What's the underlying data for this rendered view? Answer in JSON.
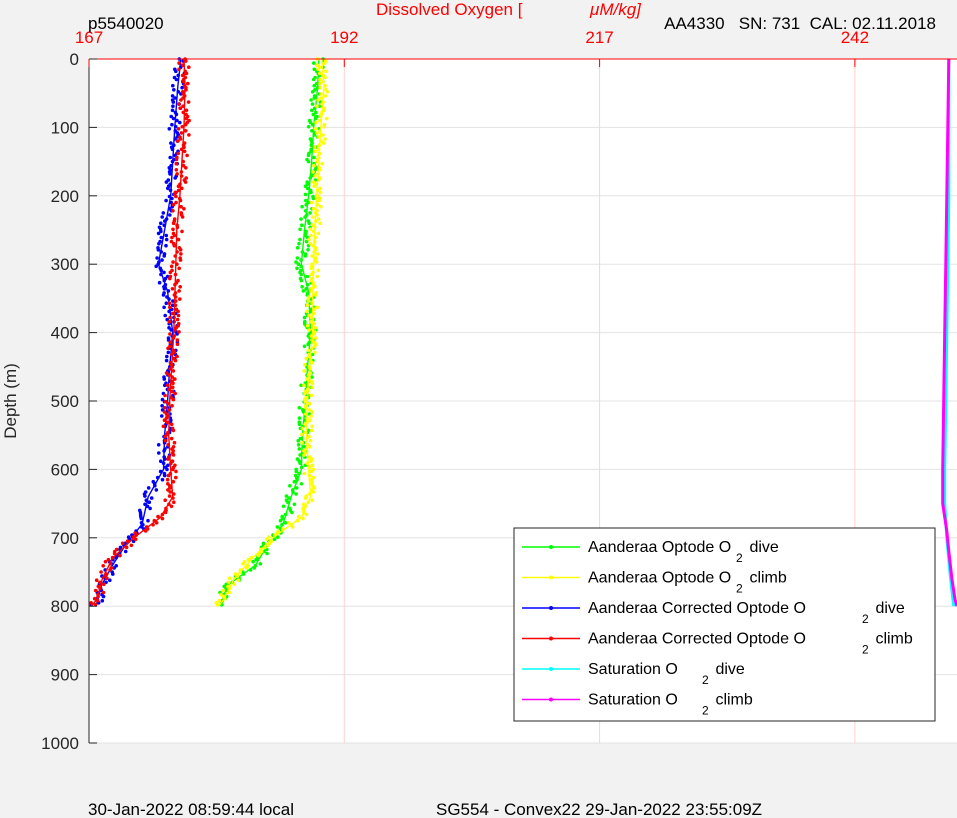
{
  "header": {
    "plot_id": "p5540020",
    "title_prefix": "Dissolved Oxygen [",
    "title_unit": "μM/kg]",
    "sensor_info": "AA4330   SN: 731  CAL: 02.11.2018"
  },
  "footer": {
    "local_time": "30-Jan-2022 08:59:44 local",
    "mission": "SG554 - Convex22 29-Jan-2022 23:55:09Z"
  },
  "colors": {
    "background": "#f2f2f2",
    "axes": "#ffffff",
    "top_axis": "#ff0000",
    "green": "#00ff00",
    "yellow": "#ffff00",
    "blue": "#0000ff",
    "red": "#ff0000",
    "cyan": "#00ffff",
    "magenta": "#ff00ff"
  },
  "chart_data": {
    "type": "scatter",
    "title": "Dissolved Oxygen [ μM/kg]",
    "ylabel": "Depth (m)",
    "xlabel": "",
    "xlim": [
      167,
      252
    ],
    "ylim": [
      0,
      1000
    ],
    "y_reversed": true,
    "x_axis_position": "top",
    "xticks": [
      "167",
      "192",
      "217",
      "242"
    ],
    "yticks": [
      "0",
      "100",
      "200",
      "300",
      "400",
      "500",
      "600",
      "700",
      "800",
      "900",
      "1000"
    ],
    "grid": true,
    "legend_position": "bottom-right",
    "series": [
      {
        "name": "Aanderaa Optode O",
        "sub": "2",
        "suffix": " dive",
        "color": "#00ff00",
        "points": [
          [
            189.5,
            0
          ],
          [
            189.4,
            40
          ],
          [
            189.0,
            100
          ],
          [
            188.8,
            150
          ],
          [
            188.5,
            200
          ],
          [
            188.1,
            250
          ],
          [
            187.8,
            300
          ],
          [
            188.5,
            340
          ],
          [
            188.7,
            400
          ],
          [
            188.4,
            450
          ],
          [
            188.2,
            500
          ],
          [
            187.9,
            550
          ],
          [
            187.8,
            600
          ],
          [
            186.8,
            640
          ],
          [
            186.0,
            680
          ],
          [
            184.5,
            710
          ],
          [
            183.3,
            740
          ],
          [
            180.5,
            770
          ],
          [
            179.9,
            800
          ]
        ]
      },
      {
        "name": "Aanderaa Optode O",
        "sub": "2",
        "suffix": " climb",
        "color": "#ffff00",
        "points": [
          [
            189.8,
            0
          ],
          [
            190.0,
            40
          ],
          [
            189.7,
            100
          ],
          [
            189.5,
            150
          ],
          [
            189.3,
            200
          ],
          [
            189.1,
            250
          ],
          [
            189.0,
            300
          ],
          [
            188.9,
            350
          ],
          [
            188.9,
            400
          ],
          [
            188.6,
            450
          ],
          [
            188.4,
            500
          ],
          [
            188.3,
            550
          ],
          [
            188.5,
            600
          ],
          [
            188.7,
            640
          ],
          [
            187.8,
            670
          ],
          [
            185.0,
            700
          ],
          [
            183.0,
            730
          ],
          [
            181.2,
            760
          ],
          [
            180.2,
            790
          ],
          [
            179.7,
            800
          ]
        ]
      },
      {
        "name": "Aanderaa Corrected Optode O",
        "sub": "2",
        "suffix": " dive",
        "color": "#0000ff",
        "points": [
          [
            176.0,
            0
          ],
          [
            175.7,
            40
          ],
          [
            175.4,
            100
          ],
          [
            175.2,
            150
          ],
          [
            175.0,
            200
          ],
          [
            174.4,
            250
          ],
          [
            173.8,
            300
          ],
          [
            174.7,
            340
          ],
          [
            175.2,
            400
          ],
          [
            174.9,
            450
          ],
          [
            174.7,
            500
          ],
          [
            174.4,
            550
          ],
          [
            174.3,
            600
          ],
          [
            172.8,
            640
          ],
          [
            172.2,
            680
          ],
          [
            170.6,
            710
          ],
          [
            169.3,
            740
          ],
          [
            168.2,
            770
          ],
          [
            167.7,
            800
          ]
        ]
      },
      {
        "name": "Aanderaa Corrected Optode O",
        "sub": "2",
        "suffix": " climb",
        "color": "#ff0000",
        "points": [
          [
            176.3,
            0
          ],
          [
            176.4,
            40
          ],
          [
            176.3,
            100
          ],
          [
            176.1,
            150
          ],
          [
            175.9,
            200
          ],
          [
            175.6,
            250
          ],
          [
            175.5,
            300
          ],
          [
            175.4,
            350
          ],
          [
            175.3,
            400
          ],
          [
            175.1,
            450
          ],
          [
            174.9,
            500
          ],
          [
            174.8,
            550
          ],
          [
            175.0,
            600
          ],
          [
            175.2,
            640
          ],
          [
            174.0,
            670
          ],
          [
            171.4,
            700
          ],
          [
            169.3,
            730
          ],
          [
            168.3,
            760
          ],
          [
            167.8,
            790
          ],
          [
            167.2,
            800
          ]
        ]
      },
      {
        "name": "Saturation O",
        "sub": "2",
        "suffix": " dive",
        "color": "#00ffff",
        "points": [
          [
            251.2,
            0
          ],
          [
            251.2,
            100
          ],
          [
            251.2,
            200
          ],
          [
            251.1,
            300
          ],
          [
            251.0,
            400
          ],
          [
            250.9,
            500
          ],
          [
            250.8,
            600
          ],
          [
            250.8,
            650
          ],
          [
            251.0,
            700
          ],
          [
            251.3,
            750
          ],
          [
            251.6,
            790
          ],
          [
            251.7,
            800
          ]
        ]
      },
      {
        "name": "Saturation O",
        "sub": "2",
        "suffix": " climb",
        "color": "#ff00ff",
        "points": [
          [
            251.2,
            0
          ],
          [
            251.1,
            100
          ],
          [
            251.0,
            200
          ],
          [
            250.9,
            300
          ],
          [
            250.8,
            400
          ],
          [
            250.7,
            500
          ],
          [
            250.6,
            600
          ],
          [
            250.6,
            650
          ],
          [
            251.0,
            690
          ],
          [
            251.2,
            720
          ],
          [
            251.5,
            760
          ],
          [
            251.8,
            790
          ],
          [
            252.0,
            800
          ]
        ]
      }
    ]
  }
}
